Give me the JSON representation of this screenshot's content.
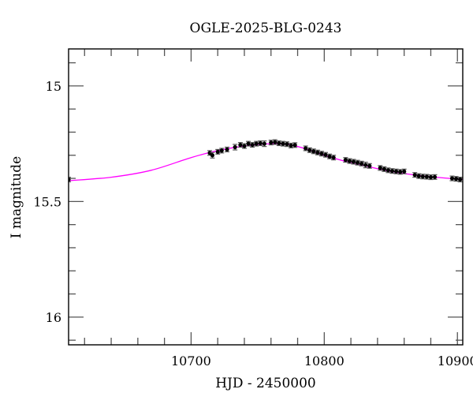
{
  "chart_data": {
    "type": "scatter",
    "title": "OGLE-2025-BLG-0243",
    "xlabel": "HJD - 2450000",
    "ylabel": "I magnitude",
    "xlim": [
      10608,
      10904
    ],
    "ylim": [
      16.12,
      14.84
    ],
    "y_inverted": true,
    "grid": false,
    "x_ticks": [
      10700,
      10800,
      10900
    ],
    "x_tick_labels": [
      "10700",
      "10800",
      "10900"
    ],
    "x_minor_step": 20,
    "y_ticks": [
      15,
      15.5,
      16
    ],
    "y_tick_labels": [
      "15",
      "15.5",
      "16"
    ],
    "y_minor_step": 0.1,
    "colors": {
      "data": "#000000",
      "errorbar": "#555555",
      "model": "#ff00ff"
    },
    "series": [
      {
        "kind": "data-with-errorbars",
        "points": [
          [
            10608,
            15.405,
            0.01
          ],
          [
            10714,
            15.29,
            0.01
          ],
          [
            10716,
            15.3,
            0.012
          ],
          [
            10720,
            15.285,
            0.01
          ],
          [
            10723,
            15.28,
            0.01
          ],
          [
            10727,
            15.275,
            0.01
          ],
          [
            10733,
            15.265,
            0.012
          ],
          [
            10737,
            15.255,
            0.01
          ],
          [
            10740,
            15.26,
            0.01
          ],
          [
            10743,
            15.25,
            0.01
          ],
          [
            10746,
            15.255,
            0.01
          ],
          [
            10749,
            15.25,
            0.01
          ],
          [
            10752,
            15.248,
            0.01
          ],
          [
            10755,
            15.25,
            0.012
          ],
          [
            10760,
            15.245,
            0.01
          ],
          [
            10763,
            15.243,
            0.01
          ],
          [
            10766,
            15.248,
            0.01
          ],
          [
            10769,
            15.25,
            0.01
          ],
          [
            10772,
            15.252,
            0.01
          ],
          [
            10775,
            15.258,
            0.01
          ],
          [
            10778,
            15.256,
            0.01
          ],
          [
            10786,
            15.27,
            0.01
          ],
          [
            10789,
            15.278,
            0.01
          ],
          [
            10792,
            15.283,
            0.01
          ],
          [
            10795,
            15.288,
            0.01
          ],
          [
            10798,
            15.293,
            0.01
          ],
          [
            10801,
            15.298,
            0.01
          ],
          [
            10804,
            15.305,
            0.01
          ],
          [
            10807,
            15.31,
            0.01
          ],
          [
            10816,
            15.32,
            0.01
          ],
          [
            10819,
            15.325,
            0.01
          ],
          [
            10822,
            15.328,
            0.01
          ],
          [
            10825,
            15.332,
            0.01
          ],
          [
            10828,
            15.336,
            0.01
          ],
          [
            10831,
            15.342,
            0.012
          ],
          [
            10834,
            15.346,
            0.01
          ],
          [
            10842,
            15.355,
            0.01
          ],
          [
            10845,
            15.36,
            0.01
          ],
          [
            10848,
            15.365,
            0.01
          ],
          [
            10851,
            15.368,
            0.01
          ],
          [
            10854,
            15.37,
            0.01
          ],
          [
            10857,
            15.372,
            0.01
          ],
          [
            10860,
            15.37,
            0.01
          ],
          [
            10868,
            15.385,
            0.01
          ],
          [
            10871,
            15.39,
            0.01
          ],
          [
            10874,
            15.392,
            0.01
          ],
          [
            10877,
            15.393,
            0.01
          ],
          [
            10880,
            15.395,
            0.01
          ],
          [
            10883,
            15.394,
            0.01
          ],
          [
            10896,
            15.4,
            0.01
          ],
          [
            10899,
            15.402,
            0.01
          ],
          [
            10902,
            15.405,
            0.01
          ]
        ]
      },
      {
        "kind": "model-curve",
        "points": [
          [
            10608,
            15.41
          ],
          [
            10640,
            15.395
          ],
          [
            10670,
            15.365
          ],
          [
            10700,
            15.31
          ],
          [
            10720,
            15.28
          ],
          [
            10740,
            15.26
          ],
          [
            10760,
            15.25
          ],
          [
            10775,
            15.255
          ],
          [
            10790,
            15.28
          ],
          [
            10800,
            15.3
          ],
          [
            10815,
            15.325
          ],
          [
            10830,
            15.345
          ],
          [
            10850,
            15.37
          ],
          [
            10875,
            15.39
          ],
          [
            10904,
            15.405
          ]
        ]
      }
    ]
  }
}
